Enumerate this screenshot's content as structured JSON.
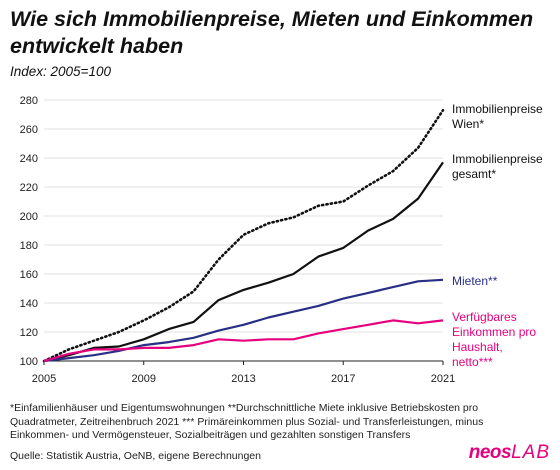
{
  "header": {
    "title": "Wie sich Immobilienpreise, Mieten und Einkommen entwickelt haben",
    "subtitle": "Index: 2005=100"
  },
  "footer": {
    "footnote": "*Einfamilienhäuser und Eigentumswohnungen **Durchschnittliche Miete inklusive Betriebskosten pro Quadratmeter, Zeitreihenbruch 2021 *** Primäreinkommen plus Sozial- und Transferleistungen, minus Einkommen- und Vermögensteuer, Sozialbeiträgen und gezahlten sonstigen Transfers",
    "source": "Quelle: Statistik Austria, OeNB, eigene Berechnungen"
  },
  "logo": {
    "part1": "neos",
    "part2": "LAB",
    "color": "#e6007e"
  },
  "chart_data": {
    "type": "line",
    "title": "Wie sich Immobilienpreise, Mieten und Einkommen entwickelt haben",
    "subtitle": "Index: 2005=100",
    "xlabel": "",
    "ylabel": "",
    "xlim": [
      2005,
      2021
    ],
    "ylim": [
      100,
      280
    ],
    "yticks": [
      100,
      120,
      140,
      160,
      180,
      200,
      220,
      240,
      260,
      280
    ],
    "xticks": [
      2005,
      2009,
      2013,
      2017,
      2021
    ],
    "grid": "horizontal",
    "legend": "direct labels at right end of lines",
    "x": [
      2005,
      2006,
      2007,
      2008,
      2009,
      2010,
      2011,
      2012,
      2013,
      2014,
      2015,
      2016,
      2017,
      2018,
      2019,
      2020,
      2021
    ],
    "series": [
      {
        "name": "Immobilienpreise Wien*",
        "label_lines": [
          "Immobilienpreise",
          "Wien*"
        ],
        "color": "#111111",
        "dash": "dotted",
        "values": [
          100,
          108,
          114,
          120,
          128,
          137,
          148,
          170,
          187,
          195,
          199,
          207,
          210,
          221,
          231,
          247,
          273
        ]
      },
      {
        "name": "Immobilienpreise gesamt*",
        "label_lines": [
          "Immobilienpreise",
          "gesamt*"
        ],
        "color": "#111111",
        "dash": "solid",
        "values": [
          100,
          104,
          109,
          110,
          115,
          122,
          127,
          142,
          149,
          154,
          160,
          172,
          178,
          190,
          198,
          212,
          237
        ]
      },
      {
        "name": "Mieten**",
        "label_lines": [
          "Mieten**"
        ],
        "color": "#2a2f86",
        "dash": "solid",
        "values": [
          100,
          102,
          104,
          107,
          111,
          113,
          116,
          121,
          125,
          130,
          134,
          138,
          143,
          147,
          151,
          155,
          156
        ]
      },
      {
        "name": "Verfügbares Einkommen pro Haushalt, netto***",
        "label_lines": [
          "Verfügbares",
          "Einkommen pro",
          "Haushalt,",
          "netto***"
        ],
        "color": "#e6007e",
        "dash": "solid",
        "values": [
          100,
          105,
          108,
          108,
          109,
          109,
          111,
          115,
          114,
          115,
          115,
          119,
          122,
          125,
          128,
          126,
          128
        ]
      }
    ]
  }
}
